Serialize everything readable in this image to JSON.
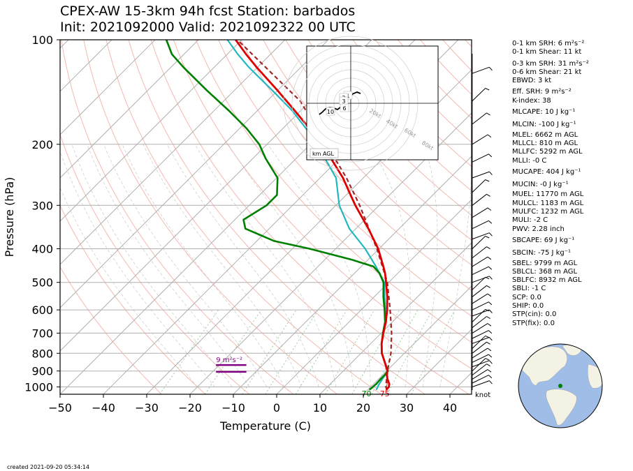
{
  "header": {
    "line1": "CPEX-AW 15-3km  94h fcst  Station: barbados",
    "line2": "Init: 2021092000  Valid: 2021092322 00 UTC"
  },
  "footer": {
    "created": "created 2021-09-20 05:34:14"
  },
  "indices": [
    "0-1 km SRH: 6 m²s⁻²",
    "0-1 km Shear: 11 kt",
    "0-3 km SRH: 31 m²s⁻²",
    "0-6 km Shear: 21 kt",
    "EBWD: 3 kt",
    "Eff. SRH: 9 m²s⁻²",
    "K-index: 38",
    "MLCAPE: 10 J kg⁻¹",
    "MLCIN: -100 J kg⁻¹",
    "MLEL: 6662 m AGL",
    "MLLCL: 810 m AGL",
    "MLLFC: 5292 m AGL",
    "MLLI: -0 C",
    "MUCAPE: 404 J kg⁻¹",
    "MUCIN: -0 J kg⁻¹",
    "MUEL: 11770 m AGL",
    "MULCL: 1183 m AGL",
    "MULFC: 1232 m AGL",
    "MULI: -2 C",
    "PWV: 2.28 inch",
    "SBCAPE: 69 J kg⁻¹",
    "SBCIN: -75 J kg⁻¹",
    "SBEL: 9799 m AGL",
    "SBLCL: 368 m AGL",
    "SBLFC: 8932 m AGL",
    "SBLI: -1 C",
    "SCP: 0.0",
    "SHIP: 0.0",
    "STP(cin): 0.0",
    "STP(fix): 0.0"
  ],
  "chart_data": {
    "type": "line",
    "subtype": "skew-T log-P",
    "xlabel": "Temperature (C)",
    "ylabel": "Pressure (hPa)",
    "xlim": [
      -50,
      45
    ],
    "ylim": [
      1050,
      100
    ],
    "y_scale": "log",
    "x_ticks": [
      -50,
      -40,
      -30,
      -20,
      -10,
      0,
      10,
      20,
      30,
      40
    ],
    "x_tick_labels": [
      "−50",
      "−40",
      "−30",
      "−20",
      "−10",
      "0",
      "10",
      "20",
      "30",
      "40"
    ],
    "y_ticks": [
      100,
      200,
      300,
      400,
      500,
      600,
      700,
      800,
      900,
      1000
    ],
    "y_tick_labels": [
      "100",
      "200",
      "300",
      "400",
      "500",
      "600",
      "700",
      "800",
      "900",
      "1000"
    ],
    "grid": true,
    "colors": {
      "temperature": "#dd0000",
      "dewpoint": "#008000",
      "wetbulb": "#20b8c0",
      "parcel": "#a02828",
      "srh_layer": "#800080",
      "isotherm": "#b0b0b0",
      "dry_adiabat": "#f4b8b0",
      "moist_adiabat": "#c8c8c8",
      "mixing_ratio": "#9ccc9c",
      "globe_ocean": "#9fbde6",
      "globe_land": "#f4f2e4",
      "station_marker": "#008000"
    },
    "series": [
      {
        "key": "temperature",
        "pressure": [
          1020,
          1000,
          980,
          950,
          925,
          900,
          850,
          800,
          750,
          700,
          650,
          600,
          550,
          500,
          470,
          450,
          400,
          350,
          300,
          280,
          250,
          220,
          200,
          180,
          160,
          140,
          120,
          110,
          100
        ],
        "values": [
          24.3,
          24.2,
          23.6,
          22.1,
          21.0,
          20.2,
          17.6,
          14.8,
          12.5,
          10.5,
          8.5,
          6.0,
          3.0,
          -0.6,
          -3.0,
          -4.9,
          -10.2,
          -17.1,
          -25.5,
          -29.0,
          -34.7,
          -41.9,
          -47.4,
          -53.9,
          -61.4,
          -70.0,
          -80.2,
          -85.7,
          -91.4
        ]
      },
      {
        "key": "dewpoint",
        "pressure": [
          1020,
          1000,
          980,
          950,
          925,
          900,
          850,
          800,
          750,
          700,
          650,
          600,
          550,
          500,
          470,
          450,
          430,
          400,
          380,
          350,
          330,
          300,
          280,
          250,
          220,
          200,
          180,
          160,
          140,
          120,
          110,
          100
        ],
        "values": [
          20.4,
          20.5,
          20.6,
          20.5,
          20.5,
          20.3,
          17.6,
          14.8,
          12.5,
          10.4,
          8.3,
          5.4,
          2.1,
          -1.2,
          -4.3,
          -7.2,
          -13.8,
          -26.0,
          -36.0,
          -45.5,
          -48.0,
          -46.0,
          -46.0,
          -49.8,
          -57.0,
          -61.8,
          -68.4,
          -76.6,
          -86.3,
          -97.1,
          -102.8,
          -107.4
        ]
      },
      {
        "key": "wetbulb",
        "pressure": [
          1020,
          1000,
          980,
          950,
          925,
          900,
          850,
          800,
          750,
          700,
          650,
          600,
          550,
          500,
          450,
          400,
          350,
          300,
          250,
          200,
          180,
          160,
          140,
          120,
          110,
          100
        ],
        "values": [
          22.0,
          21.6,
          21.3,
          20.9,
          20.6,
          20.3,
          17.6,
          14.8,
          12.5,
          10.4,
          8.3,
          5.6,
          2.4,
          -1.0,
          -6.6,
          -13.2,
          -21.5,
          -29.2,
          -36.3,
          -48.5,
          -54.7,
          -62.0,
          -71.2,
          -82.0,
          -87.6,
          -93.3
        ]
      },
      {
        "key": "parcel",
        "pressure": [
          1020,
          1000,
          900,
          850,
          800,
          700,
          600,
          500,
          400,
          300,
          250,
          200,
          150,
          100
        ],
        "values": [
          24.5,
          23.5,
          20.2,
          18.6,
          16.9,
          12.4,
          6.7,
          -0.3,
          -10.5,
          -24.5,
          -33.9,
          -46.3,
          -62.4,
          -91.0
        ]
      }
    ],
    "annotations": {
      "srh_label": "9 m²s⁻²",
      "srh_temperature_range": [
        -14,
        -7
      ],
      "srh_pressure_levels": [
        865,
        905
      ],
      "dewpoint_surface_label": "70",
      "temperature_surface_label": "75"
    },
    "hodograph": {
      "ring_labels": [
        "20kt",
        "40kt",
        "60kt",
        "80kt"
      ],
      "height_labels": [
        "1",
        "2",
        "3",
        "6",
        "10"
      ],
      "legend": "km AGL"
    },
    "wind_barbs_unit": "knot"
  }
}
